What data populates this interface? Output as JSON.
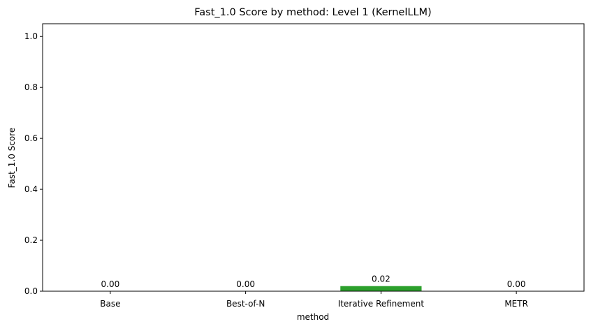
{
  "chart_data": {
    "type": "bar",
    "title": "Fast_1.0 Score by method: Level 1 (KernelLLM)",
    "xlabel": "method",
    "ylabel": "Fast_1.0 Score",
    "categories": [
      "Base",
      "Best-of-N",
      "Iterative Refinement",
      "METR"
    ],
    "values": [
      0.0,
      0.0,
      0.02,
      0.0
    ],
    "value_labels": [
      "0.00",
      "0.00",
      "0.02",
      "0.00"
    ],
    "bar_colors": [
      "#1f77b4",
      "#ff7f0e",
      "#2ca02c",
      "#d62728"
    ],
    "ylim": [
      0,
      1.05
    ],
    "yticks": [
      0.0,
      0.2,
      0.4,
      0.6,
      0.8,
      1.0
    ],
    "ytick_labels": [
      "0.0",
      "0.2",
      "0.4",
      "0.6",
      "0.8",
      "1.0"
    ],
    "grid": false,
    "legend": "none"
  }
}
